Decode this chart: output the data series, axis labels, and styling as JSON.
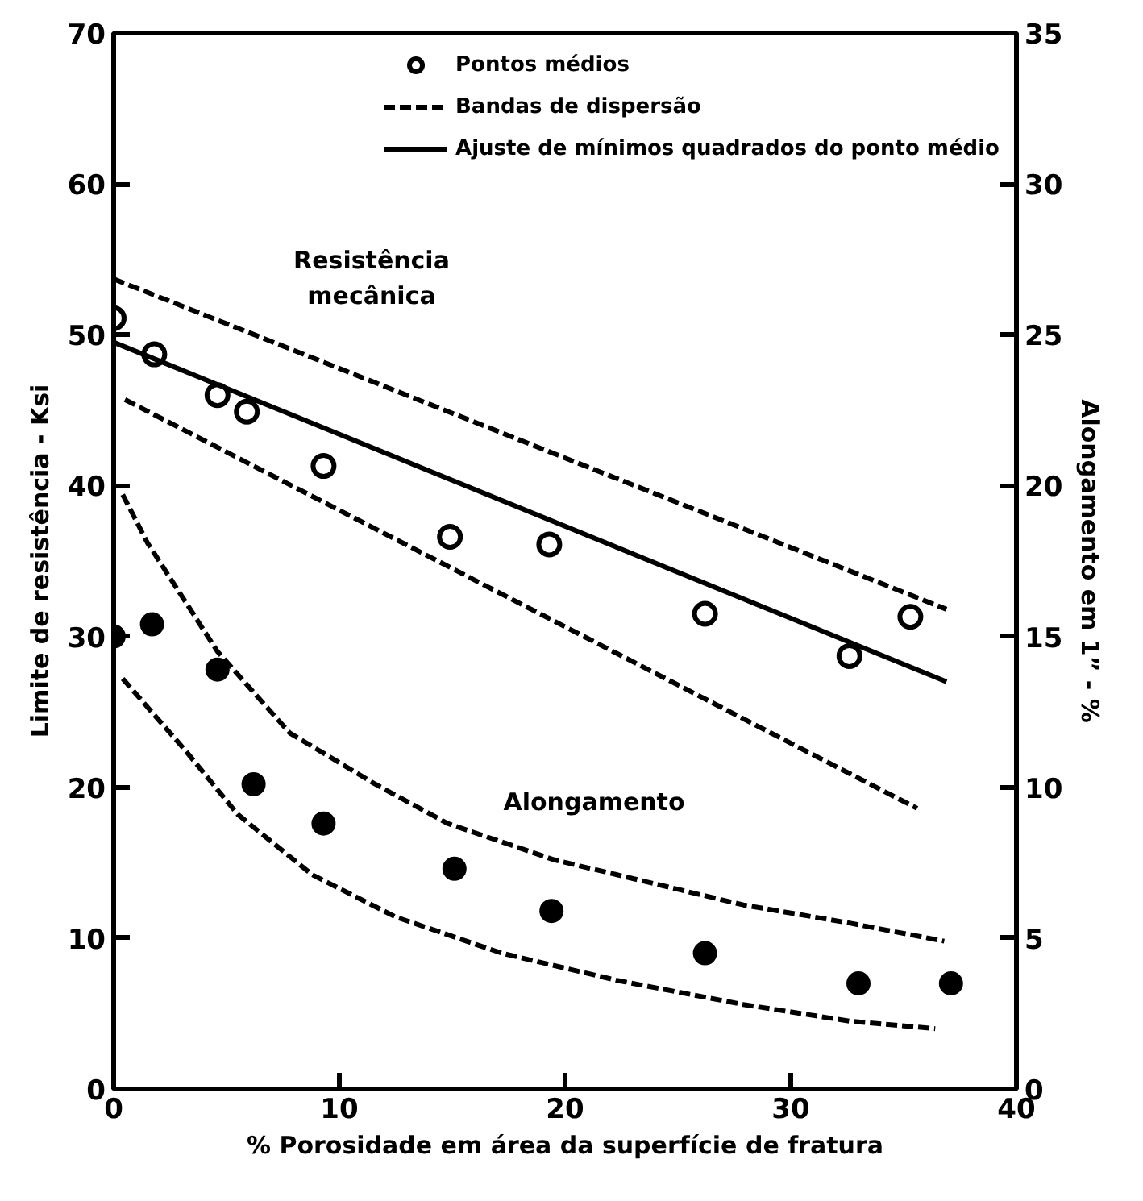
{
  "chart_data": {
    "type": "scatter",
    "xlabel": "% Porosidade em área da superfície de fratura",
    "ylabel": "Limite de resistência - Ksi",
    "y2label": "Alongamento em 1” - %",
    "xlim": [
      0,
      40
    ],
    "xticks": [
      0,
      10,
      20,
      30,
      40
    ],
    "ylim": [
      0,
      70
    ],
    "yticks": [
      0,
      10,
      20,
      30,
      40,
      50,
      60,
      70
    ],
    "y2lim": [
      0,
      35
    ],
    "y2ticks": [
      0,
      5,
      10,
      15,
      20,
      25,
      30,
      35
    ],
    "grid": false,
    "legend": "top right",
    "series": [
      {
        "name": "Pontos médios",
        "marker": "circle_open",
        "color": "#000000",
        "x": [
          0,
          1.8,
          4.6,
          5.9,
          9.3,
          14.9,
          19.3,
          26.2,
          32.6,
          35.3
        ],
        "values": [
          51.1,
          48.7,
          46.0,
          44.9,
          41.3,
          36.6,
          36.1,
          31.5,
          28.7,
          31.3
        ]
      },
      {
        "name": "Bandas de dispersão",
        "type": "line",
        "line_style": "dashed",
        "marker": "none",
        "color": "#000000",
        "x": [
          0,
          36.9
        ],
        "values": [
          53.7,
          31.8
        ]
      },
      {
        "name": "Ajuste de mínimos quadrados do ponto médio",
        "type": "line",
        "line_style": "solid",
        "marker": "none",
        "color": "#000000",
        "x": [
          0,
          36.9
        ],
        "values": [
          49.5,
          27.0
        ]
      },
      {
        "type": "line",
        "line_style": "dashed",
        "marker": "none",
        "color": "#000000",
        "x": [
          0.5,
          35.6
        ],
        "values": [
          45.7,
          18.6
        ]
      },
      {
        "marker": "circle",
        "axis": "y2",
        "color": "#000000",
        "x": [
          0,
          1.7,
          4.6,
          6.2,
          9.3,
          15.1,
          19.4,
          26.2,
          33.0,
          37.1
        ],
        "values": [
          15.0,
          15.4,
          13.9,
          10.1,
          8.8,
          7.3,
          5.9,
          4.5,
          3.5,
          3.5
        ]
      },
      {
        "type": "line",
        "line_style": "dashed",
        "marker": "none",
        "axis": "y2",
        "color": "#000000",
        "x": [
          0.4,
          1.5,
          4.6,
          7.8,
          11.6,
          14.8,
          19.5,
          22.3,
          27.9,
          32.6,
          36.8
        ],
        "values": [
          19.7,
          18.1,
          14.5,
          11.8,
          10.1,
          8.8,
          7.6,
          7.1,
          6.1,
          5.5,
          4.9
        ]
      },
      {
        "type": "line",
        "line_style": "dashed",
        "marker": "none",
        "axis": "y2",
        "color": "#000000",
        "x": [
          0.4,
          3.2,
          5.5,
          8.8,
          12.5,
          17.2,
          22.3,
          27.9,
          32.6,
          36.4
        ],
        "values": [
          13.6,
          11.2,
          9.1,
          7.1,
          5.7,
          4.5,
          3.6,
          2.8,
          2.25,
          2.0
        ]
      }
    ],
    "annotations": [
      "Resistência\nmecânica",
      "Alongamento"
    ]
  }
}
